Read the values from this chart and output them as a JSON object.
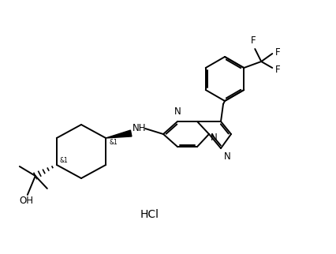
{
  "bg_color": "#ffffff",
  "line_color": "#000000",
  "lw": 1.4,
  "fs": 8.5,
  "hcl": "HCl",
  "stereo": "&1",
  "oh": "OH",
  "nh": "NH",
  "f": "F",
  "n": "N"
}
